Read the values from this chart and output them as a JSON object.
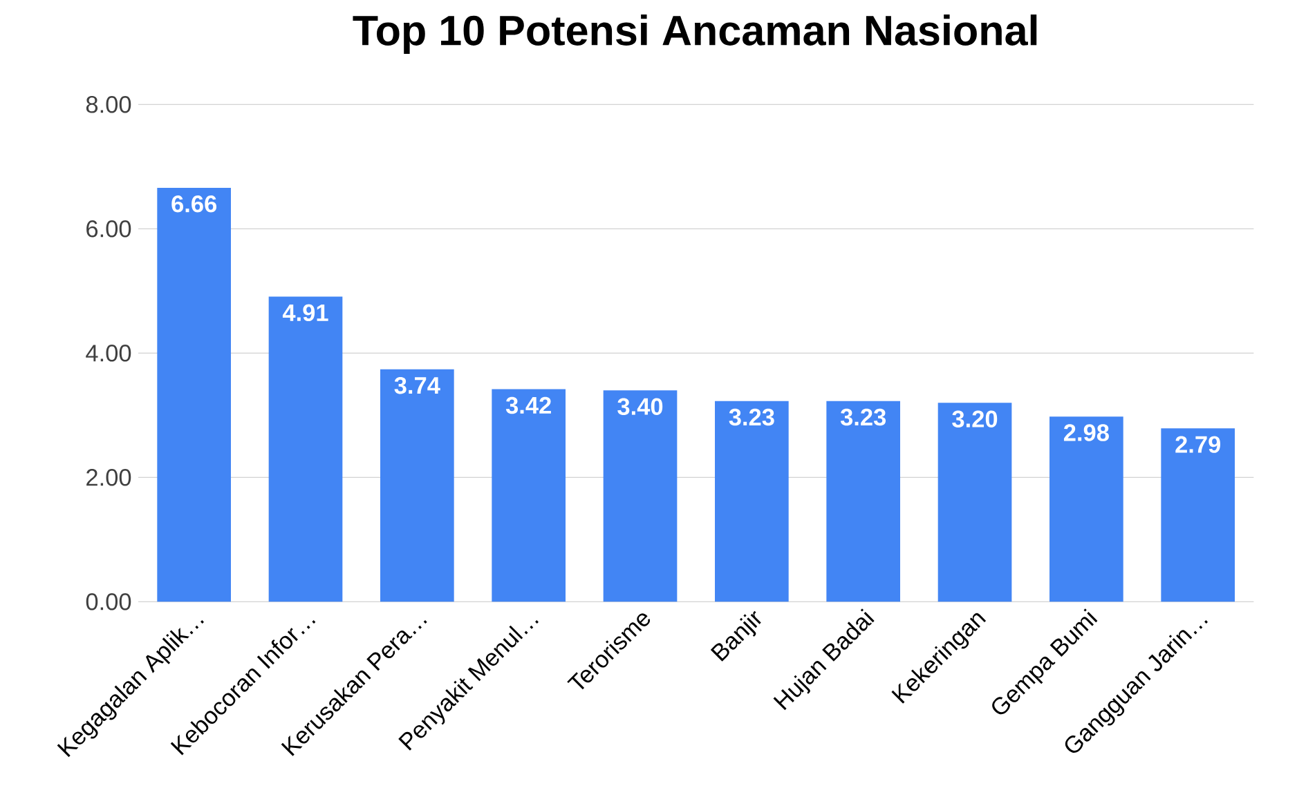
{
  "chart_data": {
    "type": "bar",
    "title": "Top 10 Potensi Ancaman Nasional",
    "categories": [
      "Kegagalan Aplik…",
      "Kebocoran Infor…",
      "Kerusakan Pera…",
      "Penyakit Menul…",
      "Terorisme",
      "Banjir",
      "Hujan Badai",
      "Kekeringan",
      "Gempa Bumi",
      "Gangguan Jarin…"
    ],
    "values": [
      6.66,
      4.91,
      3.74,
      3.42,
      3.4,
      3.23,
      3.23,
      3.2,
      2.98,
      2.79
    ],
    "value_labels": [
      "6.66",
      "4.91",
      "3.74",
      "3.42",
      "3.40",
      "3.23",
      "3.23",
      "3.20",
      "2.98",
      "2.79"
    ],
    "color": "#4285f4",
    "ylim": [
      0,
      8
    ],
    "yticks": [
      {
        "value": 0,
        "label": "0.00"
      },
      {
        "value": 2,
        "label": "2.00"
      },
      {
        "value": 4,
        "label": "4.00"
      },
      {
        "value": 6,
        "label": "6.00"
      },
      {
        "value": 8,
        "label": "8.00"
      }
    ],
    "grid": "y"
  }
}
